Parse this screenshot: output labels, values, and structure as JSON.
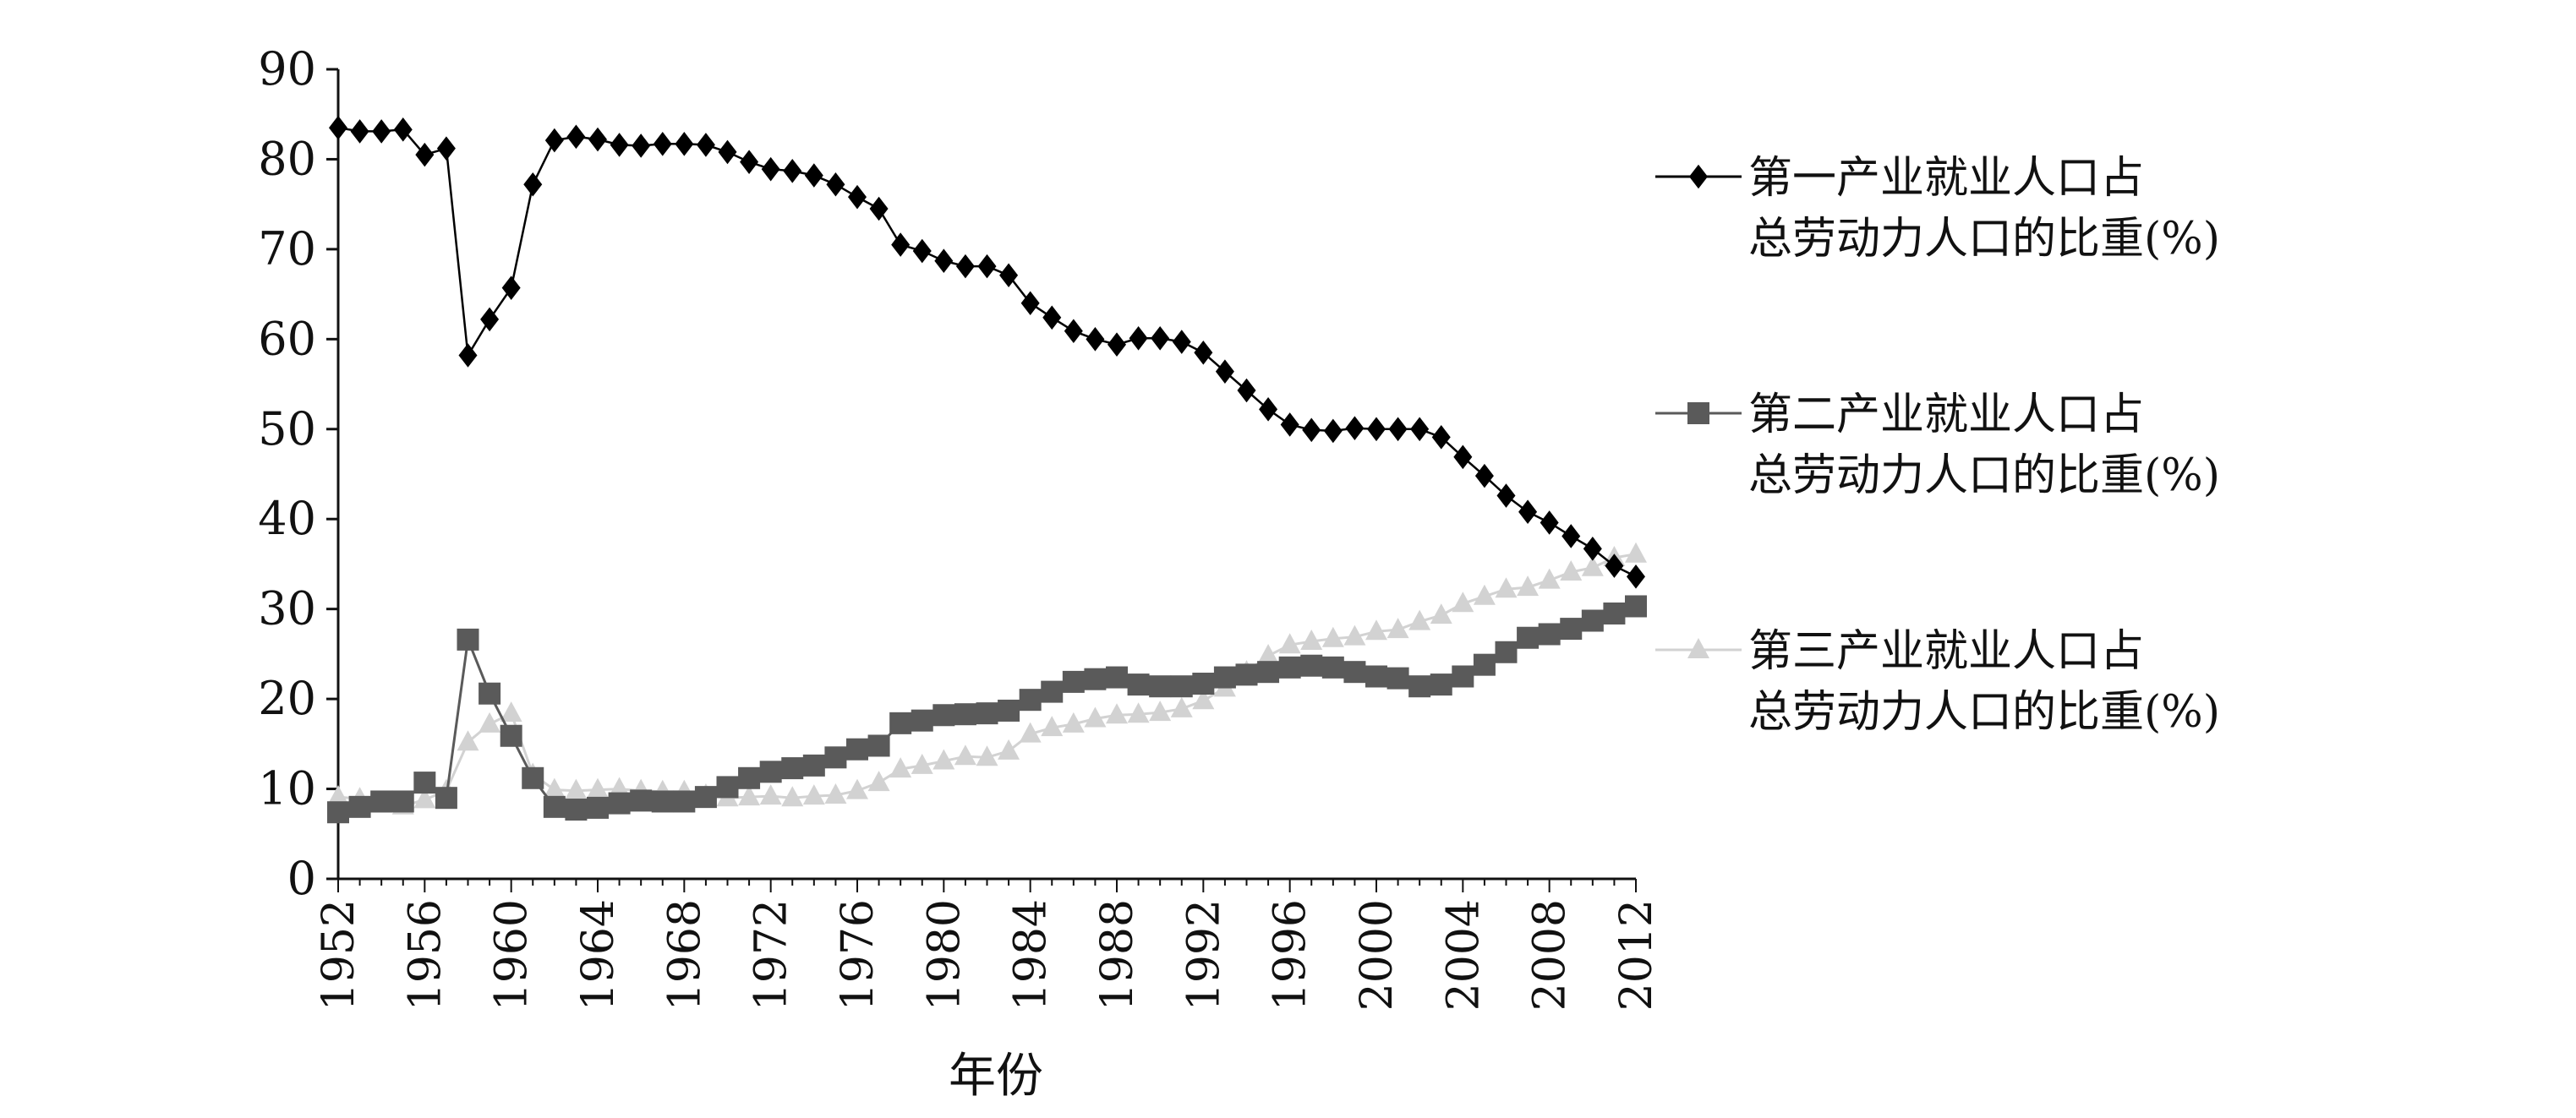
{
  "chart_data": {
    "type": "line",
    "xlabel": "年份",
    "ylabel": "",
    "ylim": [
      0,
      90
    ],
    "yticks": [
      0,
      10,
      20,
      30,
      40,
      50,
      60,
      70,
      80,
      90
    ],
    "xlim": [
      1952,
      2012
    ],
    "xticks": [
      1952,
      1956,
      1960,
      1964,
      1968,
      1972,
      1976,
      1980,
      1984,
      1988,
      1992,
      1996,
      2000,
      2004,
      2008,
      2012
    ],
    "grid": false,
    "legend_position": "right",
    "x": [
      1952,
      1953,
      1954,
      1955,
      1956,
      1957,
      1958,
      1959,
      1960,
      1961,
      1962,
      1963,
      1964,
      1965,
      1966,
      1967,
      1968,
      1969,
      1970,
      1971,
      1972,
      1973,
      1974,
      1975,
      1976,
      1977,
      1978,
      1979,
      1980,
      1981,
      1982,
      1983,
      1984,
      1985,
      1986,
      1987,
      1988,
      1989,
      1990,
      1991,
      1992,
      1993,
      1994,
      1995,
      1996,
      1997,
      1998,
      1999,
      2000,
      2001,
      2002,
      2003,
      2004,
      2005,
      2006,
      2007,
      2008,
      2009,
      2010,
      2011,
      2012
    ],
    "series": [
      {
        "name": "第一产业就业人口占总劳动力人口的比重(%)",
        "legend_lines": [
          "第一产业就业人口占",
          "总劳动力人口的比重(%)"
        ],
        "color": "#000000",
        "marker": "diamond",
        "values": [
          83.5,
          83.1,
          83.1,
          83.3,
          80.5,
          81.2,
          58.2,
          62.2,
          65.7,
          77.2,
          82.1,
          82.5,
          82.2,
          81.6,
          81.5,
          81.7,
          81.7,
          81.6,
          80.8,
          79.7,
          78.9,
          78.7,
          78.2,
          77.2,
          75.8,
          74.5,
          70.5,
          69.8,
          68.7,
          68.1,
          68.1,
          67.1,
          64.0,
          62.4,
          60.9,
          60.0,
          59.4,
          60.1,
          60.1,
          59.7,
          58.5,
          56.4,
          54.3,
          52.2,
          50.5,
          49.9,
          49.8,
          50.1,
          50.0,
          50.0,
          50.0,
          49.1,
          46.9,
          44.8,
          42.6,
          40.8,
          39.6,
          38.1,
          36.7,
          34.8,
          33.6
        ]
      },
      {
        "name": "第二产业就业人口占总劳动力人口的比重(%)",
        "legend_lines": [
          "第二产业就业人口占",
          "总劳动力人口的比重(%)"
        ],
        "color": "#5a5a5a",
        "marker": "square",
        "values": [
          7.4,
          8.0,
          8.6,
          8.6,
          10.7,
          9.0,
          26.6,
          20.6,
          15.9,
          11.2,
          8.0,
          7.7,
          7.9,
          8.4,
          8.7,
          8.6,
          8.6,
          9.1,
          10.2,
          11.2,
          11.9,
          12.3,
          12.6,
          13.5,
          14.4,
          14.8,
          17.3,
          17.6,
          18.2,
          18.3,
          18.4,
          18.7,
          19.9,
          20.8,
          21.9,
          22.2,
          22.4,
          21.6,
          21.4,
          21.4,
          21.7,
          22.4,
          22.7,
          23.0,
          23.5,
          23.7,
          23.5,
          23.0,
          22.5,
          22.3,
          21.4,
          21.6,
          22.5,
          23.8,
          25.2,
          26.8,
          27.2,
          27.8,
          28.7,
          29.5,
          30.3
        ]
      },
      {
        "name": "第三产业就业人口占总劳动力人口的比重(%)",
        "legend_lines": [
          "第三产业就业人口占",
          "总劳动力人口的比重(%)"
        ],
        "color": "#d2d2d2",
        "marker": "triangle",
        "values": [
          9.1,
          8.9,
          8.3,
          8.1,
          8.8,
          9.8,
          15.2,
          17.2,
          18.4,
          11.6,
          9.9,
          9.8,
          9.9,
          10.0,
          9.8,
          9.7,
          9.7,
          9.3,
          9.0,
          9.1,
          9.2,
          9.0,
          9.2,
          9.3,
          9.8,
          10.7,
          12.2,
          12.6,
          13.1,
          13.6,
          13.5,
          14.2,
          16.1,
          16.8,
          17.2,
          17.8,
          18.2,
          18.3,
          18.5,
          18.9,
          19.8,
          21.2,
          23.0,
          24.8,
          26.0,
          26.4,
          26.7,
          26.9,
          27.5,
          27.7,
          28.6,
          29.3,
          30.6,
          31.4,
          32.2,
          32.4,
          33.2,
          34.1,
          34.6,
          35.7,
          36.1
        ]
      }
    ]
  }
}
